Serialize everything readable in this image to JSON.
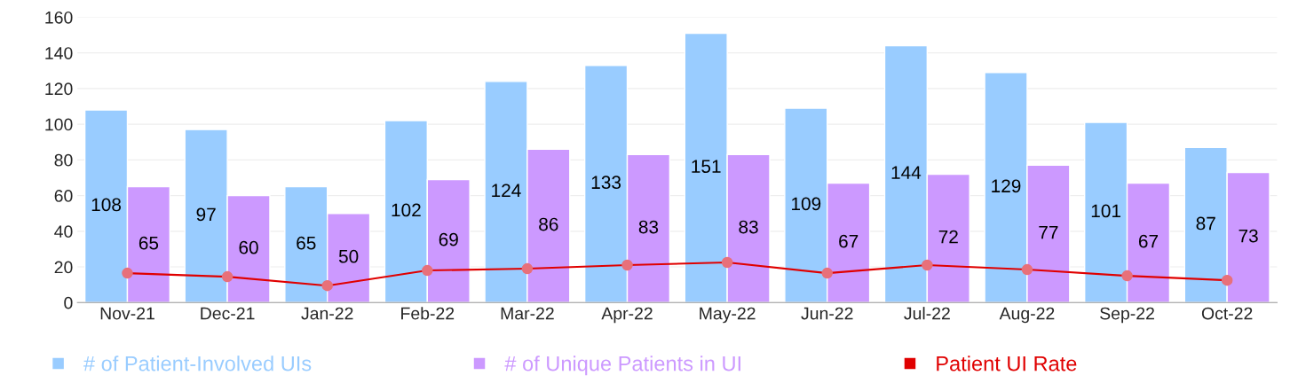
{
  "chart_data": {
    "type": "bar",
    "categories": [
      "Nov-21",
      "Dec-21",
      "Jan-22",
      "Feb-22",
      "Mar-22",
      "Apr-22",
      "May-22",
      "Jun-22",
      "Jul-22",
      "Aug-22",
      "Sep-22",
      "Oct-22"
    ],
    "series": [
      {
        "name": "# of Patient-Involved UIs",
        "color": "#99ccff",
        "values": [
          108,
          97,
          65,
          102,
          124,
          133,
          151,
          109,
          144,
          129,
          101,
          87
        ],
        "value_labels": [
          "108",
          "97",
          "65",
          "102",
          "124",
          "133",
          "151",
          "109",
          "144",
          "129",
          "101",
          "87"
        ]
      },
      {
        "name": "# of Unique Patients in UI",
        "color": "#cc99ff",
        "values": [
          65,
          60,
          50,
          69,
          86,
          83,
          83,
          67,
          72,
          77,
          67,
          73
        ],
        "value_labels": [
          "65",
          "60",
          "50",
          "69",
          "86",
          "83",
          "83",
          "67",
          "72",
          "77",
          "67",
          "73"
        ]
      },
      {
        "name": "Patient UI Rate",
        "type": "line",
        "color": "#e00000",
        "marker": "circle",
        "values": [
          16.5,
          14.5,
          9.5,
          18,
          19,
          21,
          22.5,
          16.5,
          21,
          18.5,
          15,
          12.5
        ]
      }
    ],
    "ylim": [
      0,
      160
    ],
    "yticks": [
      0,
      20,
      40,
      60,
      80,
      100,
      120,
      140,
      160
    ],
    "grid": "y",
    "legend": "bottom"
  }
}
